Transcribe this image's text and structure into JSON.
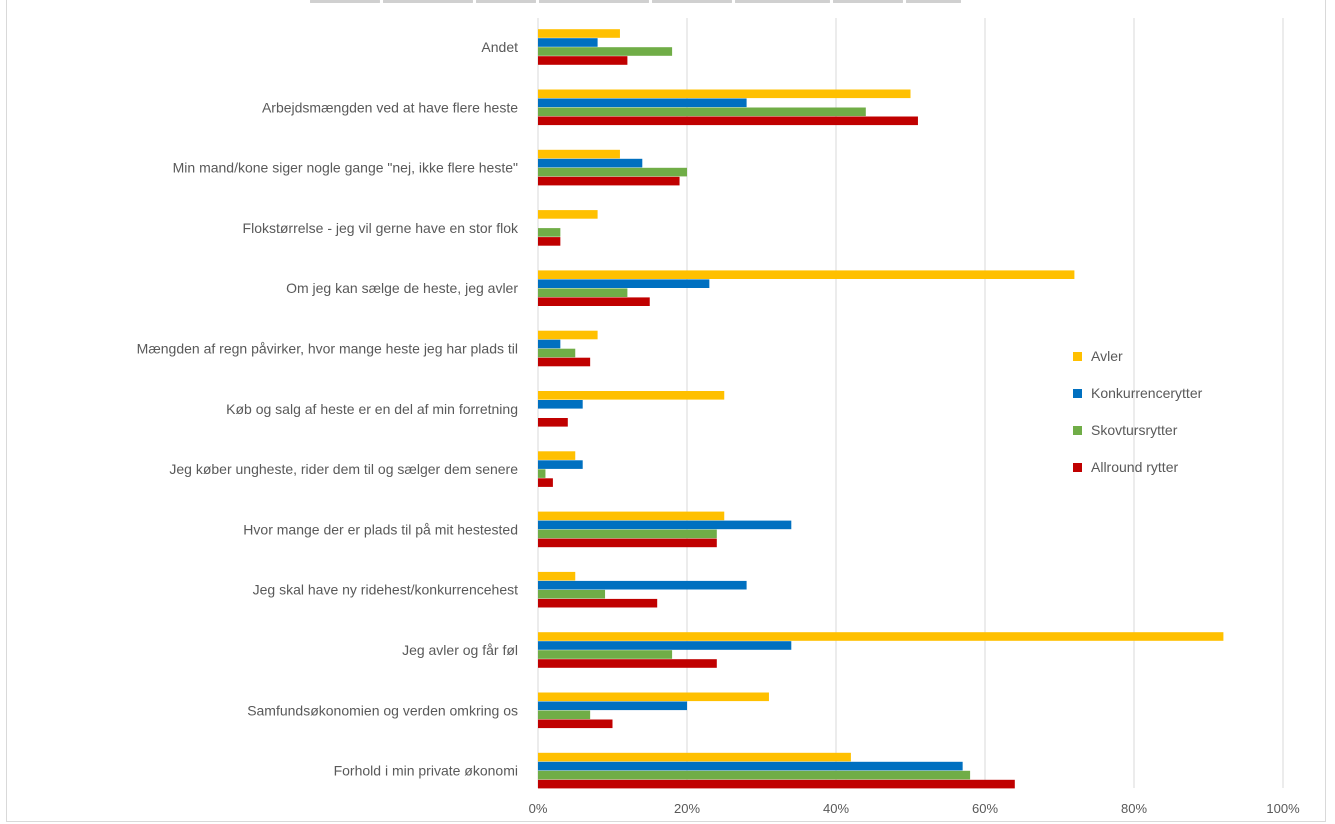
{
  "chart_data": {
    "type": "bar",
    "orientation": "horizontal",
    "categories": [
      "Andet",
      "Arbejdsmængden ved at have flere heste",
      "Min mand/kone siger nogle gange \"nej, ikke flere heste\"",
      "Flokstørrelse  - jeg vil gerne have en stor flok",
      "Om jeg kan sælge de heste, jeg avler",
      "Mængden af regn påvirker, hvor mange heste jeg har plads til",
      "Køb og salg af heste er en del af min forretning",
      "Jeg køber ungheste, rider dem til og sælger dem senere",
      "Hvor mange der er plads til på mit hestested",
      "Jeg skal have ny ridehest/konkurrencehest",
      "Jeg avler og får føl",
      "Samfundsøkonomien og verden omkring os",
      "Forhold i min private økonomi"
    ],
    "series": [
      {
        "name": "Avler",
        "color": "#FFC000",
        "values": [
          11,
          50,
          11,
          8,
          72,
          8,
          25,
          5,
          25,
          5,
          92,
          31,
          42
        ]
      },
      {
        "name": "Konkurrencerytter",
        "color": "#0070C0",
        "values": [
          8,
          28,
          14,
          0,
          23,
          3,
          6,
          6,
          34,
          28,
          34,
          20,
          57
        ]
      },
      {
        "name": "Skovtursrytter",
        "color": "#70AD47",
        "values": [
          18,
          44,
          20,
          3,
          12,
          5,
          0,
          1,
          24,
          9,
          18,
          7,
          58
        ]
      },
      {
        "name": "Allround rytter",
        "color": "#C00000",
        "values": [
          12,
          51,
          19,
          3,
          15,
          7,
          4,
          2,
          24,
          16,
          24,
          10,
          64
        ]
      }
    ],
    "xlim": [
      0,
      100
    ],
    "xticks": [
      "0%",
      "20%",
      "40%",
      "60%",
      "80%",
      "100%"
    ],
    "grid": true,
    "legend_position": "right"
  }
}
